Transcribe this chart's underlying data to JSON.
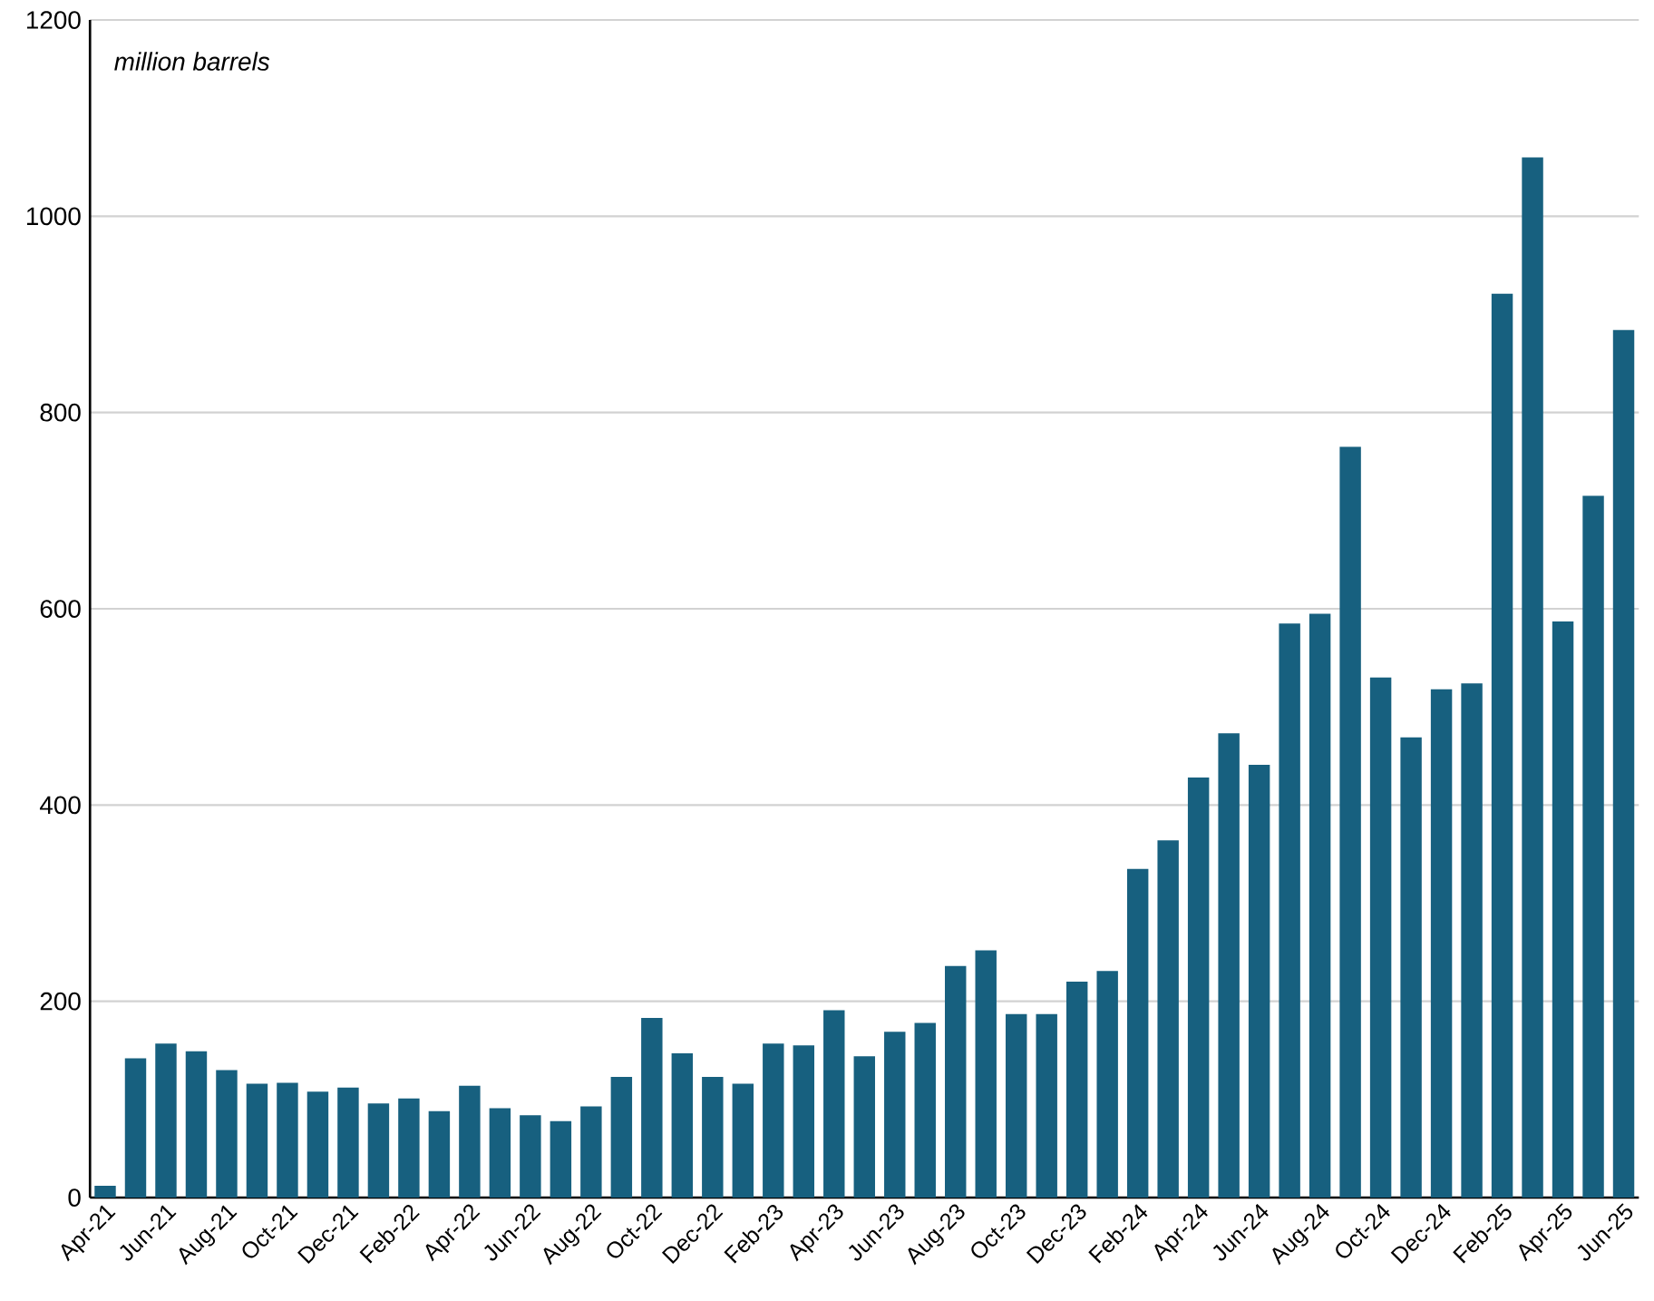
{
  "chart_data": {
    "type": "bar",
    "categories": [
      "Apr-21",
      null,
      "Jun-21",
      null,
      "Aug-21",
      null,
      "Oct-21",
      null,
      "Dec-21",
      null,
      "Feb-22",
      null,
      "Apr-22",
      null,
      "Jun-22",
      null,
      "Aug-22",
      null,
      "Oct-22",
      null,
      "Dec-22",
      null,
      "Feb-23",
      null,
      "Apr-23",
      null,
      "Jun-23",
      null,
      "Aug-23",
      null,
      "Oct-23",
      null,
      "Dec-23",
      null,
      "Feb-24",
      null,
      "Apr-24",
      null,
      "Jun-24",
      null,
      "Aug-24",
      null,
      "Oct-24",
      null,
      "Dec-24",
      null,
      "Feb-25",
      null,
      "Apr-25",
      null,
      "Jun-25"
    ],
    "values": [
      12,
      142,
      157,
      149,
      130,
      116,
      117,
      108,
      112,
      96,
      101,
      88,
      114,
      91,
      84,
      78,
      93,
      123,
      183,
      147,
      123,
      116,
      157,
      155,
      191,
      144,
      169,
      178,
      236,
      252,
      187,
      187,
      220,
      231,
      335,
      364,
      428,
      473,
      441,
      585,
      595,
      765,
      530,
      469,
      518,
      524,
      921,
      1060,
      587,
      715,
      884
    ],
    "color": "#17607f",
    "ylim": [
      0,
      1200
    ],
    "yticks": [
      0,
      200,
      400,
      600,
      800,
      1000,
      1200
    ],
    "grid": "y",
    "annotations": [
      "million barrels"
    ]
  }
}
